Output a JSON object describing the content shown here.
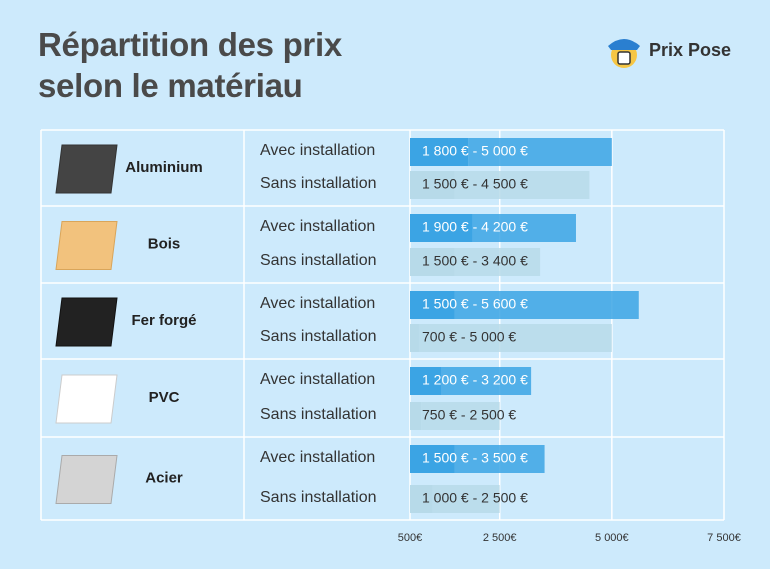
{
  "chart_data": {
    "type": "range-bar",
    "title": "Répartition des prix\nselon le matériau",
    "brand": "Prix Pose",
    "categories": [
      "Aluminium",
      "Bois",
      "Fer forgé",
      "PVC",
      "Acier"
    ],
    "series": [
      {
        "name": "Avec installation",
        "color": "#3ba4e4",
        "low": [
          1800,
          1900,
          1500,
          1200,
          1500
        ],
        "high": [
          5000,
          4200,
          5600,
          3200,
          3500
        ],
        "value_labels": [
          "1 800 € - 5 000 €",
          "1 900 € - 4 200 €",
          "1 500 € - 5 600 €",
          "1 200 € - 3 200 €",
          "1 500 € - 3 500 €"
        ]
      },
      {
        "name": "Sans installation",
        "color": "#b7dae9",
        "low": [
          1500,
          1500,
          700,
          750,
          1000
        ],
        "high": [
          4500,
          3400,
          5000,
          2500,
          2500
        ],
        "value_labels": [
          "1 500 € - 4 500 €",
          "1 500 € - 3 400 €",
          "700 € - 5 000 €",
          "750 € - 2 500 €",
          "1 000 € - 2 500 €"
        ]
      }
    ],
    "xlim": [
      500,
      7500
    ],
    "xticks": [
      {
        "value": 500,
        "label": "500€"
      },
      {
        "value": 2500,
        "label": "2 500€"
      },
      {
        "value": 5000,
        "label": "5 000€"
      },
      {
        "value": 7500,
        "label": "7 500€"
      }
    ],
    "grid": true
  }
}
